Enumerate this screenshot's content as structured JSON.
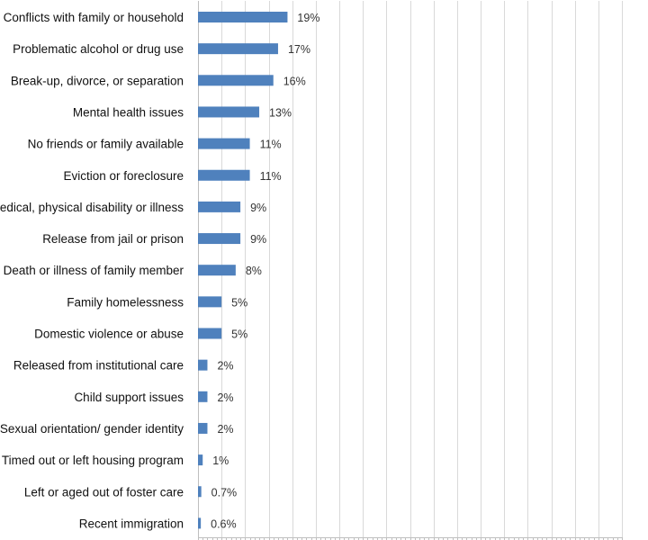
{
  "chart_data": {
    "type": "bar",
    "orientation": "horizontal",
    "title": "",
    "xlabel": "",
    "ylabel": "",
    "grid": true,
    "legend": "none",
    "xlim": [
      0,
      90
    ],
    "bar_color": "#4f81bd",
    "categories": [
      "Conflicts with family or household",
      "Problematic alcohol or drug use",
      "Break-up, divorce, or separation",
      "Mental health issues",
      "No friends or family available",
      "Eviction or foreclosure",
      "Medical, physical disability or illness",
      "Release from jail or prison",
      "Death or illness of family member",
      "Family homelessness",
      "Domestic violence or abuse",
      "Released from institutional care",
      "Child support issues",
      "Sexual orientation/ gender identity",
      "Timed out or left housing program",
      "Left or aged out of foster care",
      "Recent immigration"
    ],
    "values": [
      19,
      17,
      16,
      13,
      11,
      11,
      9,
      9,
      8,
      5,
      5,
      2,
      2,
      2,
      1,
      0.7,
      0.6
    ],
    "value_labels": [
      "19%",
      "17%",
      "16%",
      "13%",
      "11%",
      "11%",
      "9%",
      "9%",
      "8%",
      "5%",
      "5%",
      "2%",
      "2%",
      "2%",
      "1%",
      "0.7%",
      "0.6%"
    ]
  }
}
